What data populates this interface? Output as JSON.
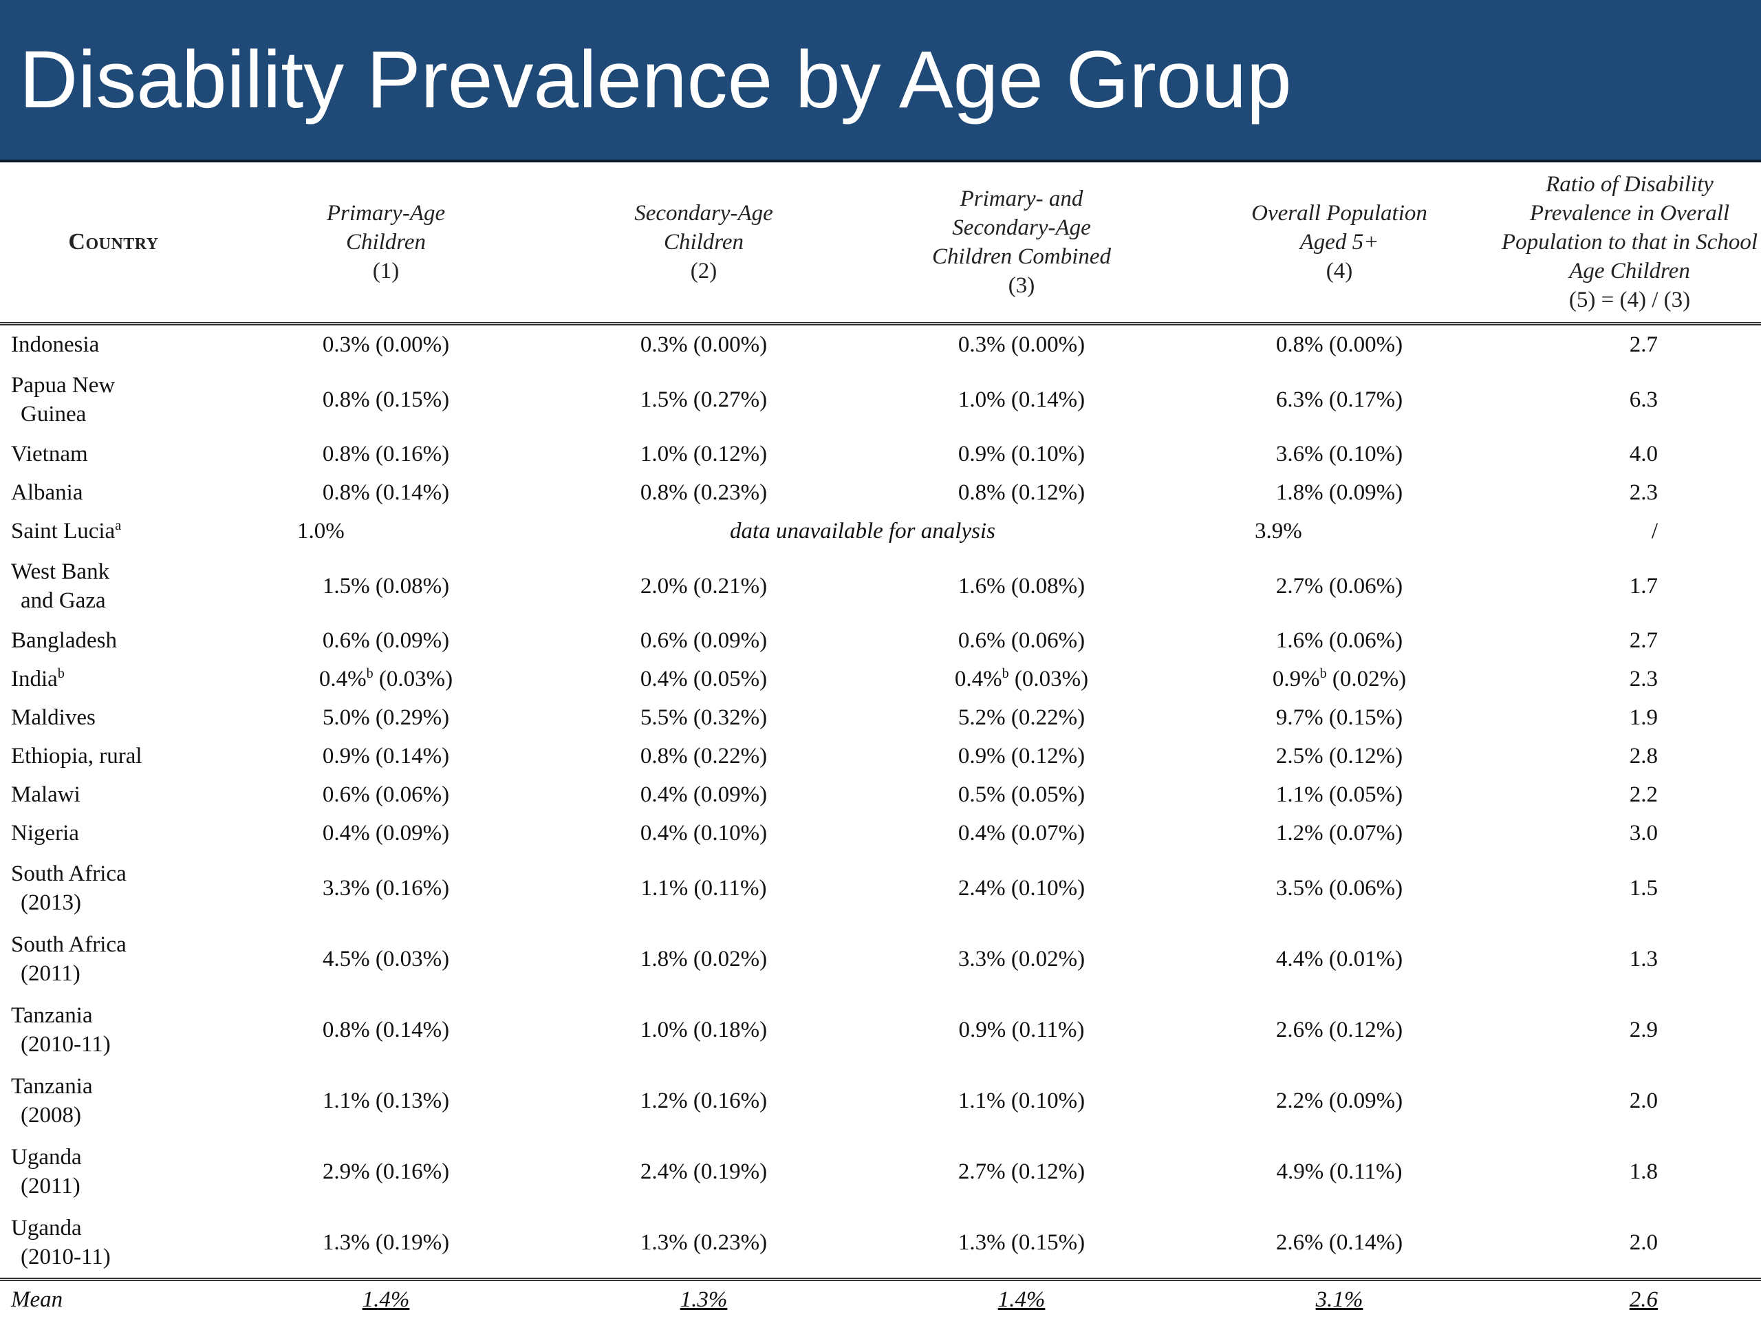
{
  "title": "Disability Prevalence by Age Group",
  "header": {
    "country": "Country",
    "col1": [
      "Primary-Age",
      "Children",
      "(1)"
    ],
    "col2": [
      "Secondary-Age",
      "Children",
      "(2)"
    ],
    "col3": [
      "Primary- and",
      "Secondary-Age",
      "Children Combined",
      "(3)"
    ],
    "col4": [
      "Overall Population",
      "Aged 5+",
      "(4)"
    ],
    "col5": [
      "Ratio of Disability",
      "Prevalence in Overall",
      "Population to that in School",
      "Age Children",
      "(5) = (4) / (3)"
    ]
  },
  "rows": [
    {
      "country": [
        "Indonesia"
      ],
      "c1": "0.3% (0.00%)",
      "c2": "0.3% (0.00%)",
      "c3": "0.3% (0.00%)",
      "c4": "0.8% (0.00%)",
      "c5": "2.7"
    },
    {
      "country": [
        "Papua New",
        "Guinea"
      ],
      "c1": "0.8% (0.15%)",
      "c2": "1.5% (0.27%)",
      "c3": "1.0% (0.14%)",
      "c4": "6.3% (0.17%)",
      "c5": "6.3"
    },
    {
      "country": [
        "Vietnam"
      ],
      "c1": "0.8% (0.16%)",
      "c2": "1.0% (0.12%)",
      "c3": "0.9% (0.10%)",
      "c4": "3.6% (0.10%)",
      "c5": "4.0"
    },
    {
      "country": [
        "Albania"
      ],
      "c1": "0.8% (0.14%)",
      "c2": "0.8% (0.23%)",
      "c3": "0.8% (0.12%)",
      "c4": "1.8% (0.09%)",
      "c5": "2.3"
    },
    {
      "country": [
        "Saint Lucia"
      ],
      "sup": "a",
      "c1": "1.0%",
      "unavailable": "data unavailable for analysis",
      "c4": "3.9%",
      "c5": "/"
    },
    {
      "country": [
        "West Bank",
        "and Gaza"
      ],
      "c1": "1.5% (0.08%)",
      "c2": "2.0% (0.21%)",
      "c3": "1.6% (0.08%)",
      "c4": "2.7% (0.06%)",
      "c5": "1.7"
    },
    {
      "country": [
        "Bangladesh"
      ],
      "c1": "0.6% (0.09%)",
      "c2": "0.6% (0.09%)",
      "c3": "0.6% (0.06%)",
      "c4": "1.6% (0.06%)",
      "c5": "2.7"
    },
    {
      "country": [
        "India"
      ],
      "sup": "b",
      "c1_main": "0.4%",
      "c1_sup": "b",
      "c1_rest": " (0.03%)",
      "c2": "0.4% (0.05%)",
      "c3_main": "0.4%",
      "c3_sup": "b",
      "c3_rest": " (0.03%)",
      "c4_main": "0.9%",
      "c4_sup": "b",
      "c4_rest": " (0.02%)",
      "c5": "2.3"
    },
    {
      "country": [
        "Maldives"
      ],
      "c1": "5.0% (0.29%)",
      "c2": "5.5% (0.32%)",
      "c3": "5.2% (0.22%)",
      "c4": "9.7% (0.15%)",
      "c5": "1.9"
    },
    {
      "country": [
        "Ethiopia, rural"
      ],
      "c1": "0.9% (0.14%)",
      "c2": "0.8% (0.22%)",
      "c3": "0.9% (0.12%)",
      "c4": "2.5% (0.12%)",
      "c5": "2.8"
    },
    {
      "country": [
        "Malawi"
      ],
      "c1": "0.6% (0.06%)",
      "c2": "0.4% (0.09%)",
      "c3": "0.5% (0.05%)",
      "c4": "1.1% (0.05%)",
      "c5": "2.2"
    },
    {
      "country": [
        "Nigeria"
      ],
      "c1": "0.4% (0.09%)",
      "c2": "0.4% (0.10%)",
      "c3": "0.4% (0.07%)",
      "c4": "1.2% (0.07%)",
      "c5": "3.0"
    },
    {
      "country": [
        "South Africa",
        "(2013)"
      ],
      "c1": "3.3% (0.16%)",
      "c2": "1.1% (0.11%)",
      "c3": "2.4% (0.10%)",
      "c4": "3.5% (0.06%)",
      "c5": "1.5"
    },
    {
      "country": [
        "South Africa",
        "(2011)"
      ],
      "c1": "4.5% (0.03%)",
      "c2": "1.8% (0.02%)",
      "c3": "3.3% (0.02%)",
      "c4": "4.4% (0.01%)",
      "c5": "1.3"
    },
    {
      "country": [
        "Tanzania",
        "(2010-11)"
      ],
      "c1": "0.8% (0.14%)",
      "c2": "1.0% (0.18%)",
      "c3": "0.9% (0.11%)",
      "c4": "2.6% (0.12%)",
      "c5": "2.9"
    },
    {
      "country": [
        "Tanzania",
        "(2008)"
      ],
      "c1": "1.1% (0.13%)",
      "c2": "1.2% (0.16%)",
      "c3": "1.1% (0.10%)",
      "c4": "2.2% (0.09%)",
      "c5": "2.0"
    },
    {
      "country": [
        "Uganda",
        "(2011)"
      ],
      "c1": "2.9% (0.16%)",
      "c2": "2.4% (0.19%)",
      "c3": "2.7% (0.12%)",
      "c4": "4.9% (0.11%)",
      "c5": "1.8"
    },
    {
      "country": [
        "Uganda",
        "(2010-11)"
      ],
      "c1": "1.3% (0.19%)",
      "c2": "1.3% (0.23%)",
      "c3": "1.3% (0.15%)",
      "c4": "2.6% (0.14%)",
      "c5": "2.0"
    }
  ],
  "mean": {
    "label": "Mean",
    "c1": "1.4%",
    "c2": "1.3%",
    "c3": "1.4%",
    "c4": "3.1%",
    "c5": "2.6"
  }
}
